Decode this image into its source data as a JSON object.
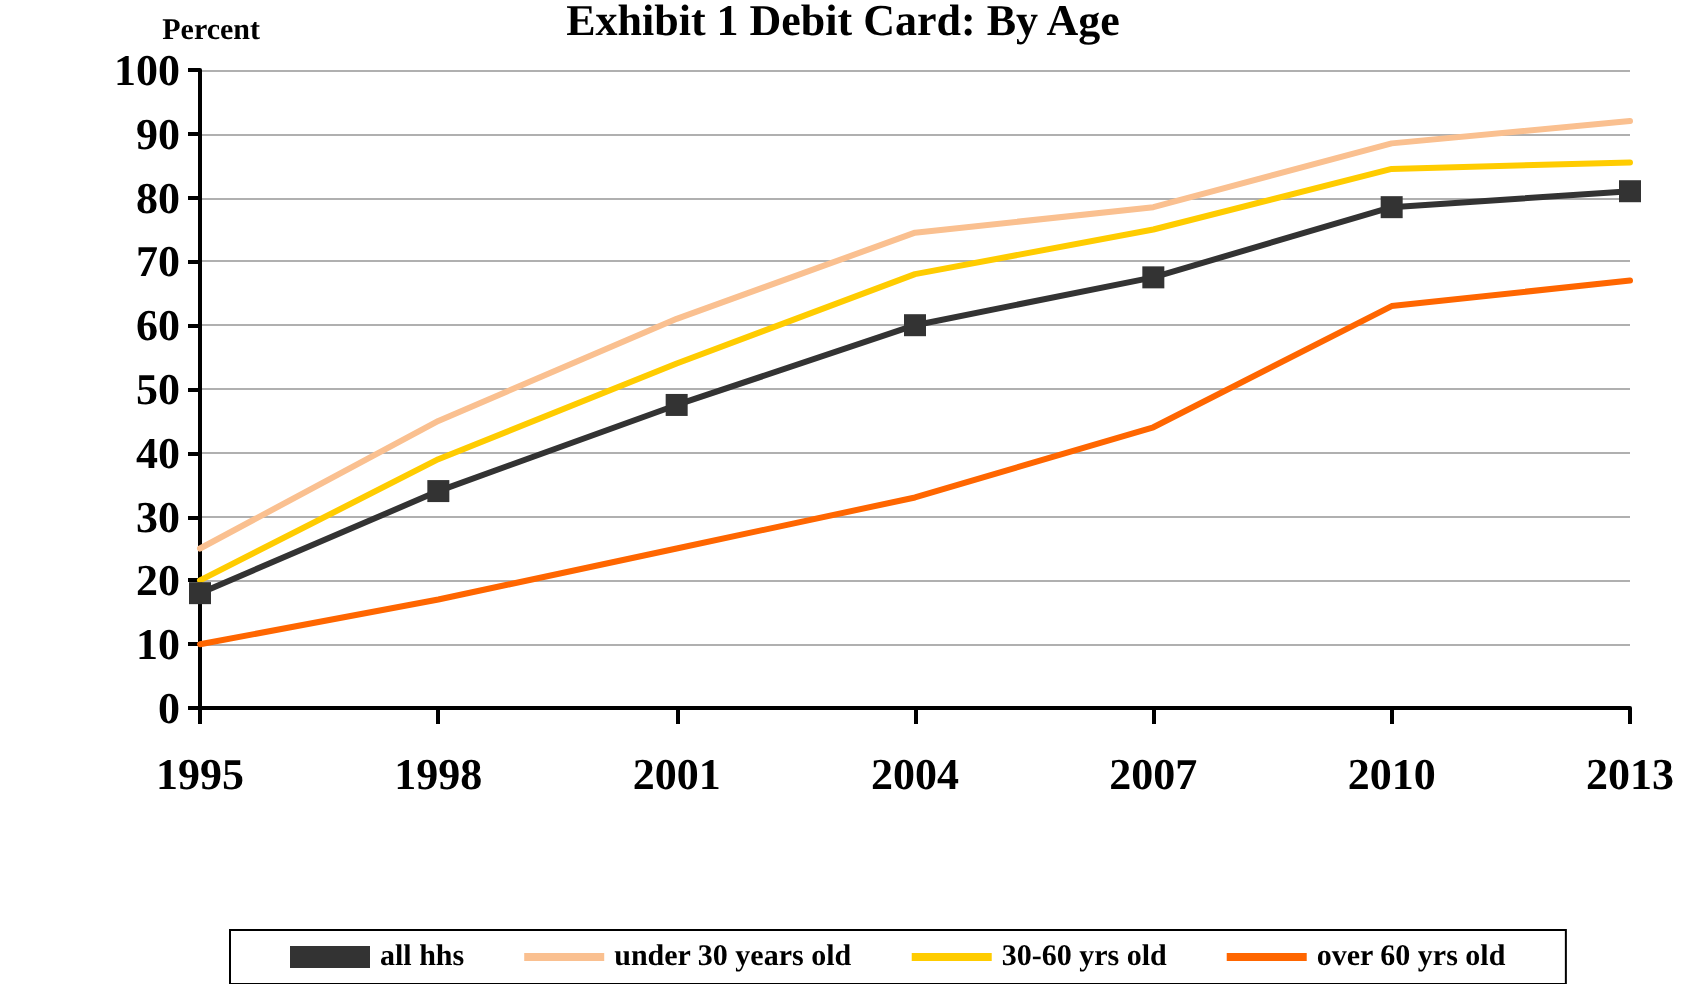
{
  "chart_data": {
    "type": "line",
    "title": "Exhibit 1 Debit Card: By Age",
    "ylabel": "Percent",
    "categories": [
      "1995",
      "1998",
      "2001",
      "2004",
      "2007",
      "2010",
      "2013"
    ],
    "series": [
      {
        "name": "all hhs",
        "color": "#333333",
        "marker": "square",
        "values": [
          18,
          34,
          47.5,
          60,
          67.5,
          78.5,
          81
        ]
      },
      {
        "name": "under 30 years old",
        "color": "#fac090",
        "marker": "none",
        "values": [
          25,
          45,
          61,
          74.5,
          78.5,
          88.5,
          92
        ]
      },
      {
        "name": "30-60 yrs old",
        "color": "#ffcc00",
        "marker": "none",
        "values": [
          20,
          39,
          54,
          68,
          75,
          84.5,
          85.5
        ]
      },
      {
        "name": "over 60 yrs old",
        "color": "#ff6600",
        "marker": "none",
        "values": [
          10,
          17,
          25,
          33,
          44,
          63,
          67
        ]
      }
    ],
    "ylim": [
      0,
      100
    ],
    "yticks": [
      0,
      10,
      20,
      30,
      40,
      50,
      60,
      70,
      80,
      90,
      100
    ],
    "grid": "y",
    "legend": "bottom",
    "line_style": "solid"
  }
}
